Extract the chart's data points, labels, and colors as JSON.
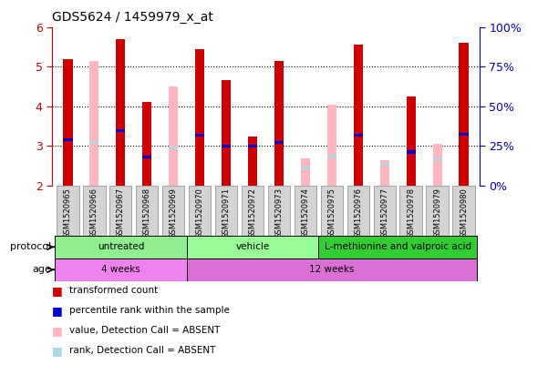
{
  "title": "GDS5624 / 1459979_x_at",
  "samples": [
    "GSM1520965",
    "GSM1520966",
    "GSM1520967",
    "GSM1520968",
    "GSM1520969",
    "GSM1520970",
    "GSM1520971",
    "GSM1520972",
    "GSM1520973",
    "GSM1520974",
    "GSM1520975",
    "GSM1520976",
    "GSM1520977",
    "GSM1520978",
    "GSM1520979",
    "GSM1520980"
  ],
  "red_values": [
    5.2,
    0,
    5.7,
    4.1,
    0,
    5.45,
    4.65,
    3.25,
    5.15,
    0,
    0,
    5.55,
    0,
    4.25,
    0,
    5.6
  ],
  "pink_values": [
    0,
    5.15,
    0,
    0,
    4.5,
    0,
    0,
    0,
    0,
    2.7,
    4.05,
    0,
    2.65,
    0,
    3.05,
    0
  ],
  "blue_values": [
    3.15,
    0,
    3.38,
    2.72,
    0,
    3.28,
    3.0,
    3.0,
    3.1,
    0,
    0,
    3.28,
    0,
    2.85,
    0,
    3.3
  ],
  "lightblue_values": [
    0,
    3.1,
    0,
    0,
    2.95,
    0,
    0,
    0,
    0,
    2.45,
    2.75,
    0,
    2.55,
    0,
    2.65,
    0
  ],
  "ymin": 2.0,
  "ymax": 6.0,
  "yticks": [
    2,
    3,
    4,
    5,
    6
  ],
  "right_yticklabels": [
    "0%",
    "25%",
    "50%",
    "75%",
    "100%"
  ],
  "protocol_groups": [
    {
      "label": "untreated",
      "start": 0,
      "end": 5,
      "color": "#90EE90"
    },
    {
      "label": "vehicle",
      "start": 5,
      "end": 10,
      "color": "#98FB98"
    },
    {
      "label": "L-methionine and valproic acid",
      "start": 10,
      "end": 16,
      "color": "#32CD32"
    }
  ],
  "age_groups": [
    {
      "label": "4 weeks",
      "start": 0,
      "end": 5,
      "color": "#EE82EE"
    },
    {
      "label": "12 weeks",
      "start": 5,
      "end": 16,
      "color": "#DA70D6"
    }
  ],
  "bar_width": 0.35,
  "red_color": "#CC0000",
  "pink_color": "#FFB6C1",
  "blue_color": "#0000CC",
  "lightblue_color": "#ADD8E6",
  "bg_color": "#FFFFFF",
  "tick_color_left": "#CC0000",
  "tick_color_right": "#0000CC",
  "legend_items": [
    {
      "color": "#CC0000",
      "label": "transformed count"
    },
    {
      "color": "#0000CC",
      "label": "percentile rank within the sample"
    },
    {
      "color": "#FFB6C1",
      "label": "value, Detection Call = ABSENT"
    },
    {
      "color": "#ADD8E6",
      "label": "rank, Detection Call = ABSENT"
    }
  ]
}
